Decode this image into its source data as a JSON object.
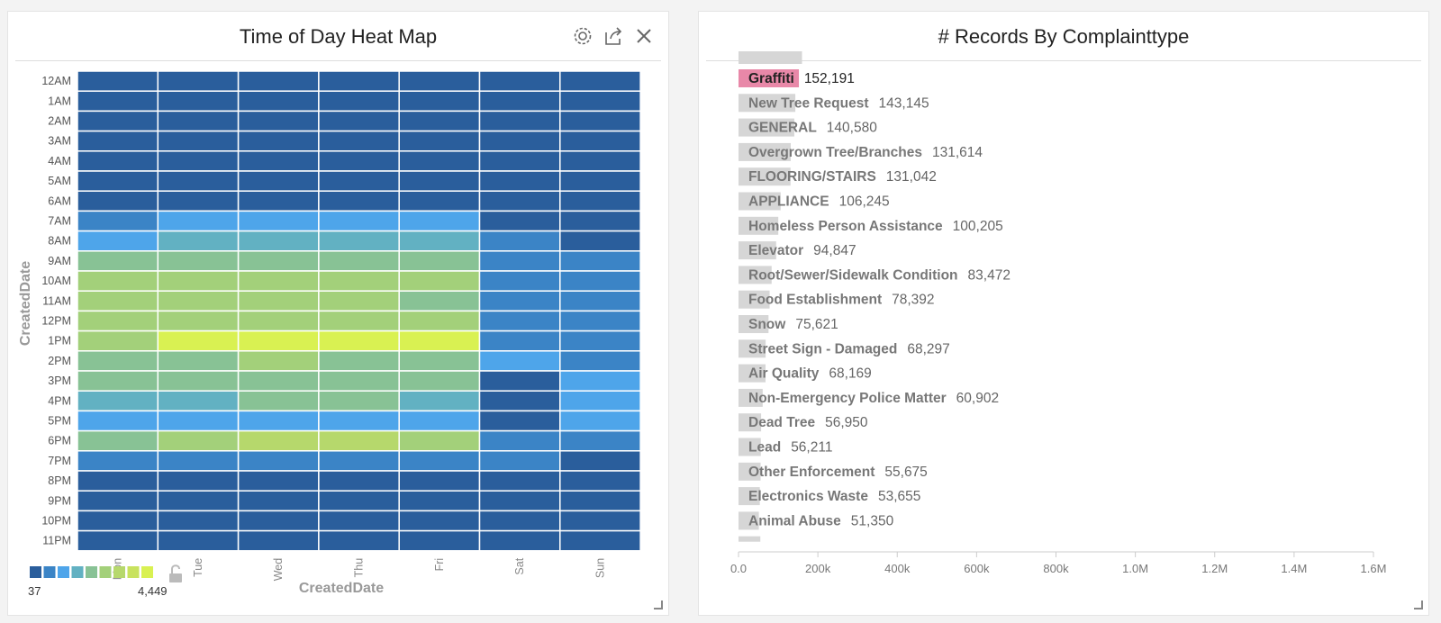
{
  "panels": {
    "heatmap": {
      "title": "Time of Day Heat Map",
      "icons": [
        "gear-icon",
        "export-icon",
        "close-icon"
      ],
      "legend": {
        "min": "37",
        "max": "4,449",
        "colors": [
          "#2a5e9c",
          "#3b84c6",
          "#4ea5ea",
          "#62b1c2",
          "#88c295",
          "#a3d07a",
          "#b6d86c",
          "#c8e25e",
          "#d9f152"
        ]
      }
    },
    "bars": {
      "title": "# Records By Complainttype"
    }
  },
  "chart_data": [
    {
      "type": "heatmap",
      "title": "Time of Day Heat Map",
      "xlabel": "CreatedDate",
      "ylabel": "CreatedDate",
      "x": [
        "Mon",
        "Tue",
        "Wed",
        "Thu",
        "Fri",
        "Sat",
        "Sun"
      ],
      "y": [
        "12AM",
        "1AM",
        "2AM",
        "3AM",
        "4AM",
        "5AM",
        "6AM",
        "7AM",
        "8AM",
        "9AM",
        "10AM",
        "11AM",
        "12PM",
        "1PM",
        "2PM",
        "3PM",
        "4PM",
        "5PM",
        "6PM",
        "7PM",
        "8PM",
        "9PM",
        "10PM",
        "11PM"
      ],
      "color_range": [
        37,
        4449
      ],
      "values": [
        [
          150,
          140,
          145,
          140,
          150,
          200,
          220
        ],
        [
          90,
          85,
          88,
          86,
          90,
          150,
          170
        ],
        [
          60,
          58,
          59,
          57,
          60,
          110,
          120
        ],
        [
          45,
          42,
          44,
          43,
          45,
          80,
          90
        ],
        [
          40,
          38,
          39,
          38,
          41,
          60,
          70
        ],
        [
          55,
          52,
          54,
          53,
          55,
          50,
          55
        ],
        [
          250,
          240,
          245,
          240,
          250,
          120,
          110
        ],
        [
          700,
          1300,
          1280,
          1300,
          1290,
          300,
          250
        ],
        [
          1400,
          1850,
          1860,
          1870,
          1840,
          550,
          450
        ],
        [
          2150,
          2200,
          2220,
          2210,
          2180,
          750,
          650
        ],
        [
          2750,
          2800,
          2820,
          2800,
          2760,
          850,
          750
        ],
        [
          2700,
          2780,
          2800,
          2790,
          2250,
          900,
          800
        ],
        [
          2650,
          2700,
          2720,
          2700,
          2680,
          920,
          820
        ],
        [
          2720,
          4400,
          4420,
          4449,
          4380,
          950,
          850
        ],
        [
          2250,
          2300,
          2720,
          2280,
          2240,
          1250,
          900
        ],
        [
          2200,
          2250,
          2260,
          2240,
          2230,
          500,
          1300
        ],
        [
          1750,
          1800,
          2200,
          2180,
          1820,
          450,
          1200
        ],
        [
          1250,
          1200,
          1220,
          1230,
          1210,
          400,
          1100
        ],
        [
          2200,
          2800,
          3300,
          3350,
          2780,
          650,
          600
        ],
        [
          700,
          650,
          680,
          670,
          660,
          550,
          500
        ],
        [
          500,
          460,
          480,
          470,
          460,
          450,
          420
        ],
        [
          380,
          360,
          370,
          365,
          360,
          380,
          350
        ],
        [
          280,
          260,
          270,
          265,
          260,
          330,
          300
        ],
        [
          200,
          180,
          190,
          185,
          180,
          260,
          240
        ]
      ]
    },
    {
      "type": "bar",
      "orientation": "horizontal",
      "title": "# Records By Complainttype",
      "categories": [
        "Graffiti",
        "New Tree Request",
        "GENERAL",
        "Overgrown Tree/Branches",
        "FLOORING/STAIRS",
        "APPLIANCE",
        "Homeless Person Assistance",
        "Elevator",
        "Root/Sewer/Sidewalk Condition",
        "Food Establishment",
        "Snow",
        "Street Sign - Damaged",
        "Air Quality",
        "Non-Emergency Police Matter",
        "Dead Tree",
        "Lead",
        "Other Enforcement",
        "Electronics Waste",
        "Animal Abuse"
      ],
      "values": [
        152191,
        143145,
        140580,
        131614,
        131042,
        106245,
        100205,
        94847,
        83472,
        78392,
        75621,
        68297,
        68169,
        60902,
        56950,
        56211,
        55675,
        53655,
        51350
      ],
      "value_labels": [
        "152,191",
        "143,145",
        "140,580",
        "131,614",
        "131,042",
        "106,245",
        "100,205",
        "94,847",
        "83,472",
        "78,392",
        "75,621",
        "68,297",
        "68,169",
        "60,902",
        "56,950",
        "56,211",
        "55,675",
        "53,655",
        "51,350"
      ],
      "highlighted": "Graffiti",
      "highlight_color": "#e888a8",
      "bar_color": "#d6d6d6",
      "xlim": [
        0,
        1600000
      ],
      "xticks": [
        "0.0",
        "200k",
        "400k",
        "600k",
        "800k",
        "1.0M",
        "1.2M",
        "1.4M",
        "1.6M"
      ],
      "grid": false
    }
  ]
}
